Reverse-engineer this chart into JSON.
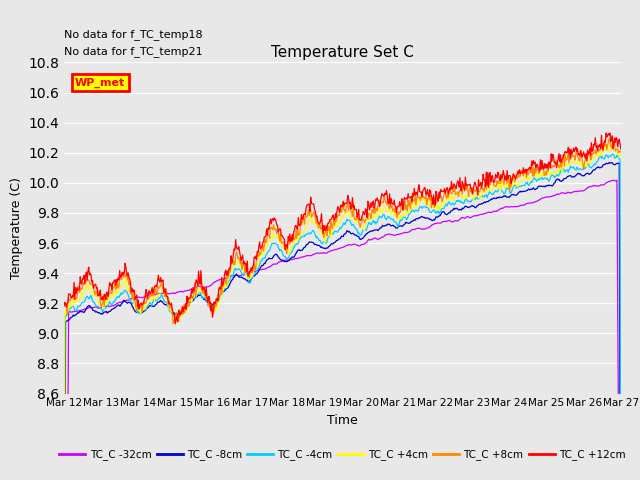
{
  "title": "Temperature Set C",
  "xlabel": "Time",
  "ylabel": "Temperature (C)",
  "ylim": [
    8.6,
    10.8
  ],
  "yticks": [
    8.6,
    8.8,
    9.0,
    9.2,
    9.4,
    9.6,
    9.8,
    10.0,
    10.2,
    10.4,
    10.6,
    10.8
  ],
  "annotations": [
    "No data for f_TC_temp18",
    "No data for f_TC_temp21"
  ],
  "wp_met_label": "WP_met",
  "series_colors": [
    "#cc00ff",
    "#0000cc",
    "#00ccff",
    "#ffff00",
    "#ff8800",
    "#ff0000"
  ],
  "series_labels": [
    "TC_C -32cm",
    "TC_C -8cm",
    "TC_C -4cm",
    "TC_C +4cm",
    "TC_C +8cm",
    "TC_C +12cm"
  ],
  "bg_color": "#e8e8e8",
  "grid_color": "#ffffff",
  "x_start": 12,
  "x_end": 27,
  "x_tick_labels": [
    "Mar 12",
    "Mar 13",
    "Mar 14",
    "Mar 15",
    "Mar 16",
    "Mar 17",
    "Mar 18",
    "Mar 19",
    "Mar 20",
    "Mar 21",
    "Mar 22",
    "Mar 23",
    "Mar 24",
    "Mar 25",
    "Mar 26",
    "Mar 27"
  ],
  "x_tick_positions": [
    12,
    13,
    14,
    15,
    16,
    17,
    18,
    19,
    20,
    21,
    22,
    23,
    24,
    25,
    26,
    27
  ]
}
